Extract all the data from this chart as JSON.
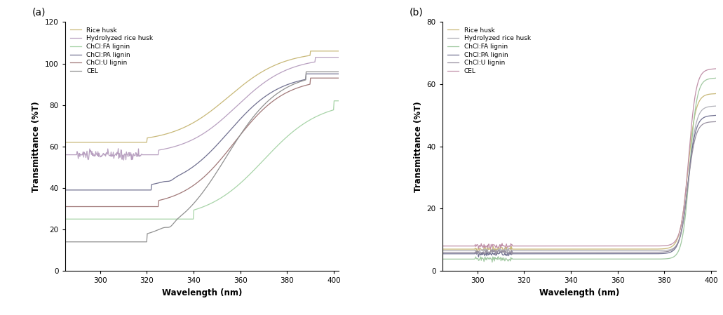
{
  "legend_labels": [
    "Rice husk",
    "Hydrolyzed rice husk",
    "ChCl:FA lignin",
    "ChCl:PA lignin",
    "ChCl:U lignin",
    "CEL"
  ],
  "colors_a": [
    "#c8b878",
    "#b8a0c0",
    "#a8d4a8",
    "#707090",
    "#a07878",
    "#909090"
  ],
  "colors_b": [
    "#c8b878",
    "#b0b0b8",
    "#a0c8a0",
    "#707090",
    "#9890a0",
    "#c090a8"
  ],
  "xlabel": "Wavelength (nm)",
  "ylabel": "Transmittance (%T)",
  "xlim": [
    285,
    402
  ],
  "ylim_a": [
    0,
    120
  ],
  "ylim_b": [
    0,
    80
  ],
  "xticks": [
    300,
    320,
    340,
    360,
    380,
    400
  ],
  "yticks_a": [
    0,
    20,
    40,
    60,
    80,
    100,
    120
  ],
  "yticks_b": [
    0,
    20,
    40,
    60,
    80
  ],
  "label_a": "(a)",
  "label_b": "(b)"
}
